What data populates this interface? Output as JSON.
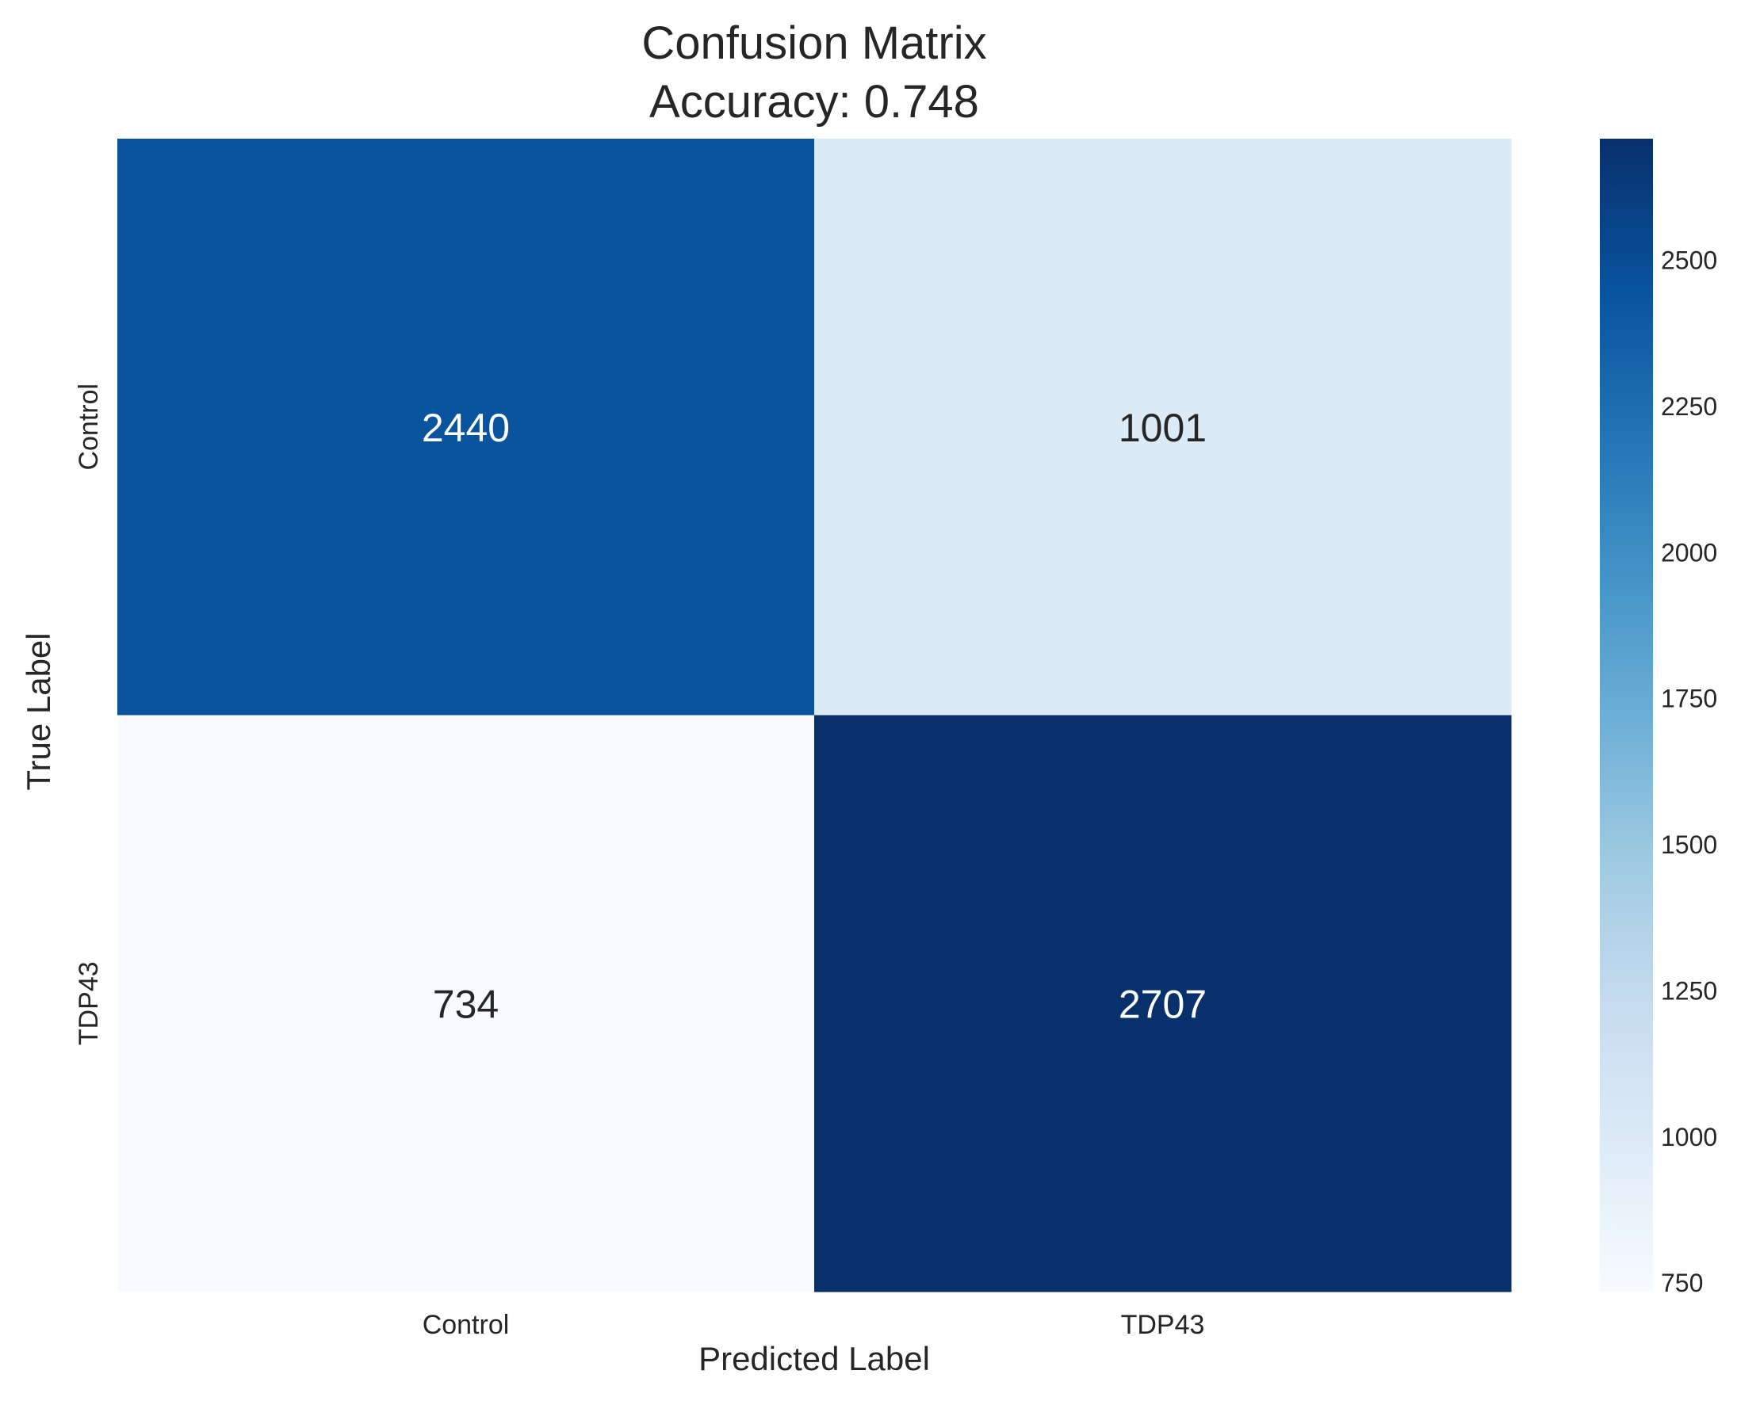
{
  "chart_data": {
    "type": "heatmap",
    "title": "Confusion Matrix",
    "subtitle": "Accuracy: 0.748",
    "xlabel": "Predicted Label",
    "ylabel": "True Label",
    "x_categories": [
      "Control",
      "TDP43"
    ],
    "y_categories": [
      "Control",
      "TDP43"
    ],
    "values": [
      [
        2440,
        1001
      ],
      [
        734,
        2707
      ]
    ],
    "colormap": "Blues",
    "color_range": [
      734,
      2707
    ],
    "colorbar_ticks": [
      750,
      1000,
      1250,
      1500,
      1750,
      2000,
      2250,
      2500
    ],
    "colors": {
      "low": "#f7fbff",
      "high": "#08306b",
      "annotation_dark_bg": "#ffffff",
      "annotation_light_bg": "#262626"
    }
  }
}
